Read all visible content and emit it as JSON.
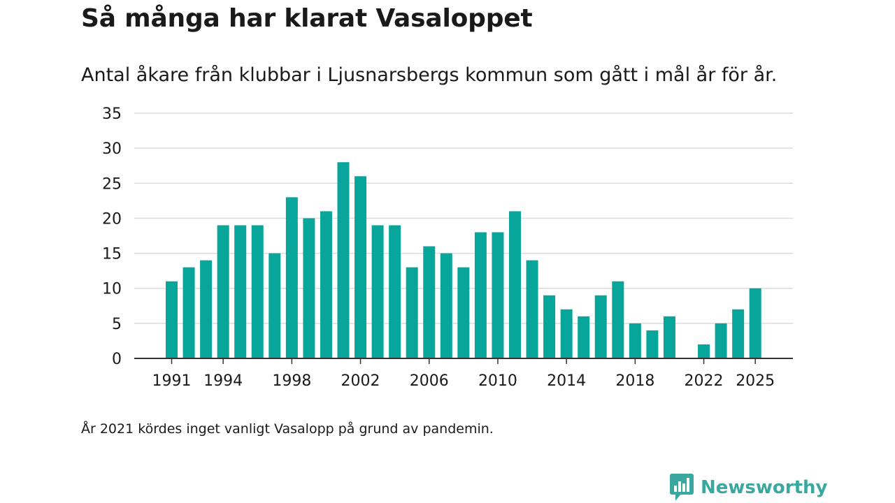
{
  "chart_data": {
    "type": "bar",
    "title": "Så många har klarat Vasaloppet",
    "subtitle": "Antal åkare från klubbar i Ljusnarsbergs kommun som gått i mål år för år.",
    "x": [
      1991,
      1992,
      1993,
      1994,
      1995,
      1996,
      1997,
      1998,
      1999,
      2000,
      2001,
      2002,
      2003,
      2004,
      2005,
      2006,
      2007,
      2008,
      2009,
      2010,
      2011,
      2012,
      2013,
      2014,
      2015,
      2016,
      2017,
      2018,
      2019,
      2020,
      2021,
      2022,
      2023,
      2024,
      2025
    ],
    "values": [
      11,
      13,
      14,
      19,
      19,
      19,
      15,
      23,
      20,
      21,
      28,
      26,
      19,
      19,
      13,
      16,
      15,
      13,
      18,
      18,
      21,
      14,
      9,
      7,
      6,
      9,
      11,
      5,
      4,
      6,
      null,
      2,
      5,
      7,
      10
    ],
    "x_tick_labels": [
      "1991",
      "1994",
      "1998",
      "2002",
      "2006",
      "2010",
      "2014",
      "2018",
      "2022",
      "2025"
    ],
    "y_tick_labels": [
      "0",
      "5",
      "10",
      "15",
      "20",
      "25",
      "30",
      "35"
    ],
    "ylim": [
      0,
      35
    ],
    "xlabel": "",
    "ylabel": "",
    "bar_color": "#08a59a",
    "grid": true
  },
  "note": "År 2021 kördes inget vanligt Vasalopp på grund av pandemin.",
  "brand": {
    "name": "Newsworthy",
    "color": "#3aa89f"
  }
}
